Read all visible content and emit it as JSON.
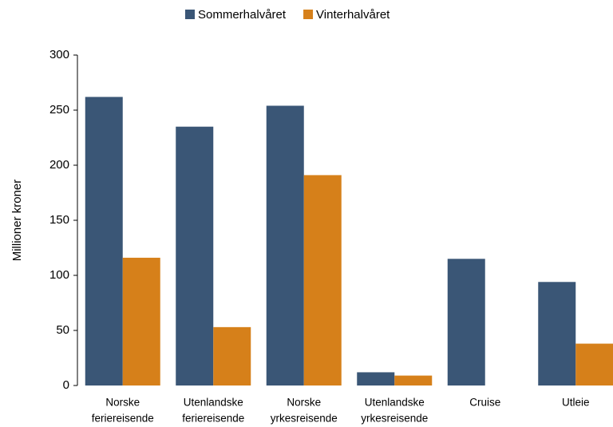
{
  "chart_data": {
    "type": "bar",
    "y_label": "Millioner kroner",
    "categories": [
      [
        "Norske",
        "feriereisende"
      ],
      [
        "Utenlandske",
        "feriereisende"
      ],
      [
        "Norske",
        "yrkesreisende"
      ],
      [
        "Utenlandske",
        "yrkesreisende"
      ],
      [
        "Cruise"
      ],
      [
        "Utleie"
      ]
    ],
    "series": [
      {
        "name": "Sommerhalvåret",
        "color": "#3a5676",
        "values": [
          262,
          235,
          254,
          12,
          115,
          94
        ]
      },
      {
        "name": "Vinterhalvåret",
        "color": "#d6801a",
        "values": [
          116,
          53,
          191,
          9,
          0,
          38
        ]
      }
    ],
    "ylim": [
      0,
      300
    ],
    "yticks": [
      0,
      50,
      100,
      150,
      200,
      250,
      300
    ],
    "legend": "top"
  }
}
